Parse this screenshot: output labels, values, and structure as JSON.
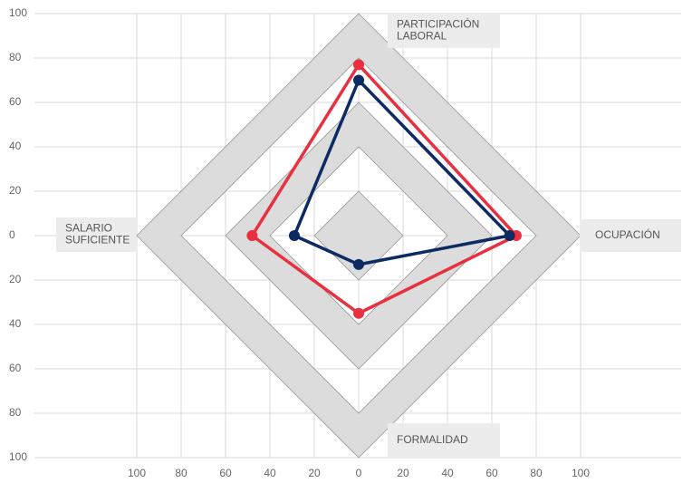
{
  "chart_data": {
    "type": "radar",
    "categories": [
      [
        "PARTICIPACIÓN",
        "LABORAL"
      ],
      [
        "OCUPACIÓN"
      ],
      [
        "FORMALIDAD"
      ],
      [
        "SALARIO",
        "SUFICIENTE"
      ]
    ],
    "series": [
      {
        "color": "#e8303f",
        "values": [
          77,
          71,
          35,
          48
        ]
      },
      {
        "color": "#0d2b63",
        "values": [
          70,
          68,
          13,
          29
        ]
      }
    ],
    "bands": [
      [
        80,
        100
      ],
      [
        40,
        60
      ],
      [
        0,
        20
      ]
    ],
    "band_color": "#dcdcdd",
    "xlim": [
      -100,
      100
    ],
    "ylim": [
      -100,
      100
    ],
    "xticks": [
      {
        "value": -100,
        "label": "100"
      },
      {
        "value": -80,
        "label": "80"
      },
      {
        "value": -60,
        "label": "60"
      },
      {
        "value": -40,
        "label": "40"
      },
      {
        "value": -20,
        "label": "20"
      },
      0,
      20,
      40,
      60,
      80,
      100
    ],
    "yticks": [
      {
        "value": -100,
        "label": "100"
      },
      {
        "value": -80,
        "label": "80"
      },
      {
        "value": -60,
        "label": "60"
      },
      {
        "value": -40,
        "label": "40"
      },
      {
        "value": -20,
        "label": "20"
      },
      0,
      20,
      40,
      60,
      80,
      100
    ],
    "grid": true
  }
}
